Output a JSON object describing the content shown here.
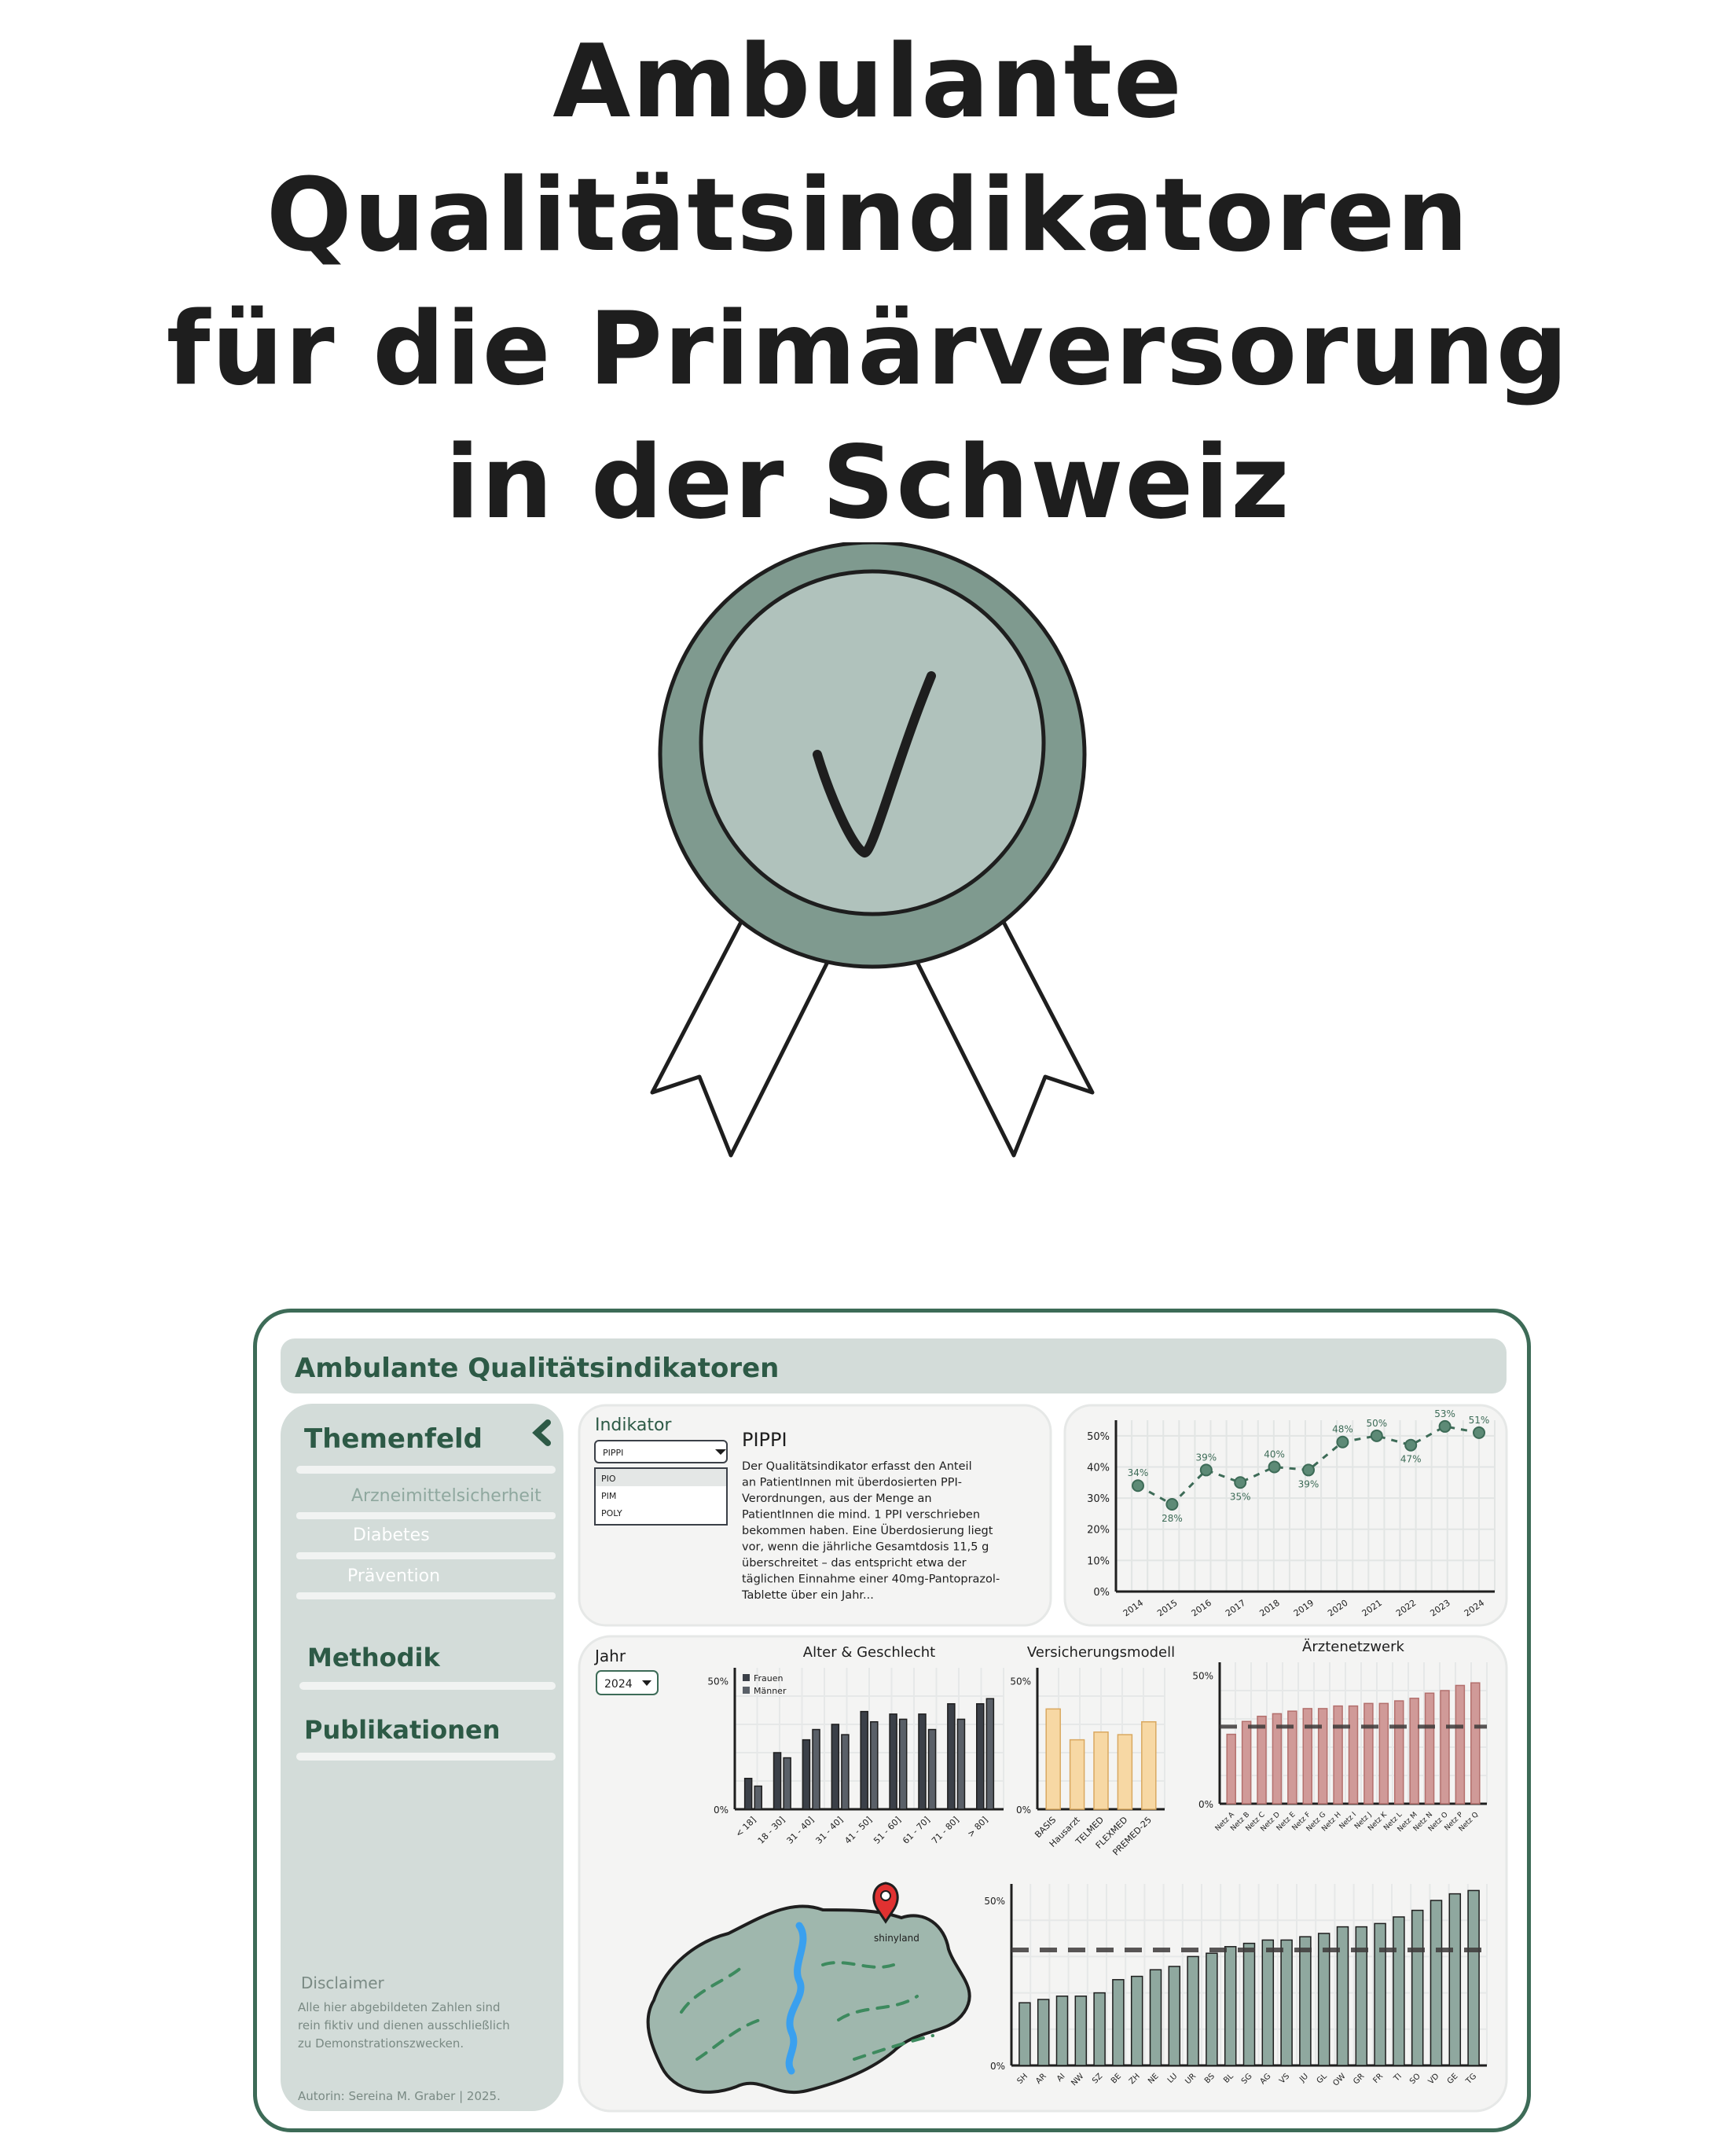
{
  "title": {
    "line1": "Ambulante Qualitätsindikatoren",
    "line2": "für die Primärversorung",
    "line3": "in der Schweiz"
  },
  "colors": {
    "dark_green": "#3d6b57",
    "badge_outer": "#7f9a8f",
    "badge_inner": "#b0c2bc",
    "sidebar": "#d3dcd9",
    "bar_dark": "#3b4048",
    "bar_yellow": "#f7d8a4",
    "bar_red": "#d09a98",
    "bar_green": "#8fa89f"
  },
  "dashboard": {
    "header": "Ambulante Qualitätsindikatoren",
    "sidebar": {
      "themenfeld": "Themenfeld",
      "collapse_icon": "chevron-left-icon",
      "items": [
        "Arzneimittelsicherheit",
        "Diabetes",
        "Prävention"
      ],
      "methodik": "Methodik",
      "publikationen": "Publikationen",
      "disclaimer_title": "Disclaimer",
      "disclaimer_text": [
        "Alle hier abgebildeten Zahlen sind",
        "rein fiktiv und dienen ausschließlich",
        "zu Demonstrationszwecken."
      ],
      "author": "Autorin: Sereina M. Graber | 2025."
    },
    "indicator": {
      "label": "Indikator",
      "selected": "PIPPI",
      "options": [
        "PIO",
        "PIM",
        "POLY"
      ],
      "heading": "PIPPI",
      "description": [
        "Der Qualitätsindikator erfasst den Anteil",
        "an PatientInnen mit überdosierten PPI-",
        "Verordnungen, aus der Menge an",
        "PatientInnen die mind. 1 PPI verschrieben",
        "bekommen haben. Eine Überdosierung liegt",
        "vor, wenn die jährliche Gesamtdosis 11,5 g",
        "überschreitet – das entspricht etwa der",
        "täglichen Einnahme einer 40mg-Pantoprazol-",
        "Tablette über ein Jahr..."
      ]
    },
    "year": {
      "label": "Jahr",
      "selected": "2024"
    },
    "map_label": "shinyland"
  },
  "chart_data": [
    {
      "type": "line",
      "x": [
        "2014",
        "2015",
        "2016",
        "2017",
        "2018",
        "2019",
        "2020",
        "2021",
        "2022",
        "2023",
        "2024"
      ],
      "values": [
        34,
        28,
        39,
        35,
        40,
        39,
        48,
        50,
        47,
        53,
        51
      ],
      "value_labels": [
        "34%",
        "28%",
        "39%",
        "35%",
        "40%",
        "39%",
        "48%",
        "50%",
        "47%",
        "53%",
        "51%"
      ],
      "yticks": [
        "0%",
        "10%",
        "20%",
        "30%",
        "40%",
        "50%"
      ],
      "ylim": [
        0,
        55
      ]
    },
    {
      "type": "bar",
      "title": "Alter & Geschlecht",
      "categories": [
        "< 18]",
        "18 - 30]",
        "31 - 40]",
        "31 - 40]",
        "41 - 50]",
        "51 - 60]",
        "61 - 70]",
        "71 - 80]",
        "> 80]"
      ],
      "series": [
        {
          "name": "Frauen",
          "values": [
            12,
            22,
            27,
            33,
            38,
            37,
            37,
            41,
            41
          ]
        },
        {
          "name": "Männer",
          "values": [
            9,
            20,
            31,
            29,
            34,
            35,
            31,
            35,
            43
          ]
        }
      ],
      "yticks": [
        "0%",
        "50%"
      ],
      "ylim": [
        0,
        55
      ]
    },
    {
      "type": "bar",
      "title": "Versicherungsmodell",
      "categories": [
        "BASIS",
        "Hausarzt",
        "TELMED",
        "FLEXMED",
        "PREMED-25"
      ],
      "values": [
        39,
        27,
        30,
        29,
        34
      ],
      "yticks": [
        "0%",
        "50%"
      ],
      "ylim": [
        0,
        55
      ]
    },
    {
      "type": "bar",
      "title": "Ärztenetzwerk",
      "categories": [
        "Netz A",
        "Netz B",
        "Netz C",
        "Netz D",
        "Netz E",
        "Netz F",
        "Netz G",
        "Netz H",
        "Netz I",
        "Netz J",
        "Netz K",
        "Netz L",
        "Netz M",
        "Netz N",
        "Netz O",
        "Netz P",
        "Netz Q"
      ],
      "values": [
        27,
        32,
        34,
        35,
        36,
        37,
        37,
        38,
        38,
        39,
        39,
        40,
        41,
        43,
        44,
        46,
        47
      ],
      "reference": 30,
      "yticks": [
        "0%",
        "50%"
      ],
      "ylim": [
        0,
        55
      ]
    },
    {
      "type": "bar",
      "categories": [
        "SH",
        "AR",
        "AI",
        "NW",
        "SZ",
        "BE",
        "ZH",
        "NE",
        "LU",
        "UR",
        "BS",
        "BL",
        "SG",
        "AG",
        "VS",
        "JU",
        "GL",
        "OW",
        "GR",
        "FR",
        "TI",
        "SO",
        "VD",
        "GE",
        "TG"
      ],
      "values": [
        19,
        20,
        21,
        21,
        22,
        26,
        27,
        29,
        30,
        33,
        34,
        36,
        37,
        38,
        38,
        39,
        40,
        42,
        42,
        43,
        45,
        47,
        50,
        52,
        53
      ],
      "reference": 35,
      "yticks": [
        "0%",
        "50%"
      ],
      "ylim": [
        0,
        55
      ]
    }
  ]
}
